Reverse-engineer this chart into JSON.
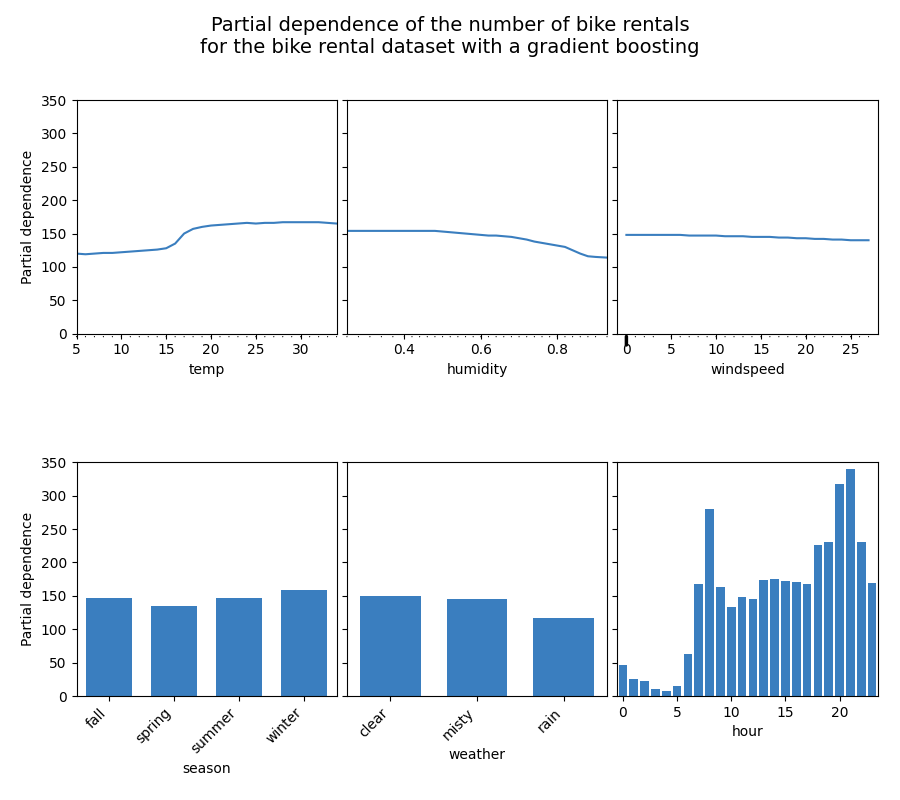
{
  "title": "Partial dependence of the number of bike rentals\nfor the bike rental dataset with a gradient boosting",
  "title_fontsize": 14,
  "line_color": "#3a7ebf",
  "bar_color": "#3a7ebf",
  "ylabel": "Partial dependence",
  "ylim": [
    0,
    350
  ],
  "yticks": [
    0,
    50,
    100,
    150,
    200,
    250,
    300,
    350
  ],
  "temp_x": [
    5.0,
    6.0,
    7.0,
    8.0,
    9.0,
    10.0,
    11.0,
    12.0,
    13.0,
    14.0,
    15.0,
    16.0,
    17.0,
    18.0,
    19.0,
    20.0,
    21.0,
    22.0,
    23.0,
    24.0,
    25.0,
    26.0,
    27.0,
    28.0,
    29.0,
    30.0,
    31.0,
    32.0,
    33.0,
    34.0
  ],
  "temp_y": [
    120,
    119,
    120,
    121,
    121,
    122,
    123,
    124,
    125,
    126,
    128,
    135,
    150,
    157,
    160,
    162,
    163,
    164,
    165,
    166,
    165,
    166,
    166,
    167,
    167,
    167,
    167,
    167,
    166,
    165
  ],
  "temp_rug": [
    5.0,
    6.0,
    7.0,
    8.0,
    9.0,
    10.0,
    11.0,
    12.0,
    13.0,
    14.0,
    15.0,
    16.0,
    17.0,
    18.0,
    19.0,
    20.0,
    21.0,
    22.0,
    23.0,
    24.0,
    25.0,
    26.0,
    27.0,
    28.0,
    29.0,
    30.0,
    31.0,
    32.0,
    33.0,
    34.0
  ],
  "humidity_x": [
    0.25,
    0.28,
    0.31,
    0.34,
    0.37,
    0.4,
    0.42,
    0.44,
    0.46,
    0.48,
    0.5,
    0.52,
    0.54,
    0.56,
    0.58,
    0.6,
    0.62,
    0.64,
    0.66,
    0.68,
    0.7,
    0.72,
    0.74,
    0.76,
    0.78,
    0.8,
    0.82,
    0.84,
    0.86,
    0.88,
    0.9,
    0.93
  ],
  "humidity_y": [
    154,
    154,
    154,
    154,
    154,
    154,
    154,
    154,
    154,
    154,
    153,
    152,
    151,
    150,
    149,
    148,
    147,
    147,
    146,
    145,
    143,
    141,
    138,
    136,
    134,
    132,
    130,
    125,
    120,
    116,
    115,
    114
  ],
  "humidity_rug": [
    0.25,
    0.28,
    0.31,
    0.34,
    0.37,
    0.4,
    0.42,
    0.44,
    0.46,
    0.48,
    0.5,
    0.52,
    0.54,
    0.56,
    0.58,
    0.6,
    0.62,
    0.64,
    0.66,
    0.68,
    0.7,
    0.72,
    0.74,
    0.76,
    0.78,
    0.8,
    0.82,
    0.84,
    0.86,
    0.88,
    0.9,
    0.93
  ],
  "windspeed_x": [
    0,
    1,
    2,
    3,
    4,
    5,
    6,
    7,
    8,
    9,
    10,
    11,
    12,
    13,
    14,
    15,
    16,
    17,
    18,
    19,
    20,
    21,
    22,
    23,
    24,
    25,
    26,
    27
  ],
  "windspeed_y": [
    148,
    148,
    148,
    148,
    148,
    148,
    148,
    147,
    147,
    147,
    147,
    146,
    146,
    146,
    145,
    145,
    145,
    144,
    144,
    143,
    143,
    142,
    142,
    141,
    141,
    140,
    140,
    140
  ],
  "windspeed_rug": [
    0,
    1,
    2,
    3,
    5,
    6,
    7,
    8,
    9,
    10,
    11,
    12,
    13,
    14,
    15,
    16,
    17,
    18,
    19,
    20,
    21,
    22,
    23,
    24,
    25,
    26,
    27
  ],
  "season_cats": [
    "fall",
    "spring",
    "summer",
    "winter"
  ],
  "season_vals": [
    147,
    135,
    147,
    158
  ],
  "weather_cats": [
    "clear",
    "misty",
    "rain"
  ],
  "weather_vals": [
    150,
    146,
    117
  ],
  "hour_vals": [
    46,
    26,
    22,
    10,
    8,
    15,
    63,
    168,
    280,
    163,
    133,
    148,
    145,
    173,
    175,
    172,
    170,
    168,
    226,
    230,
    318,
    340,
    231,
    169
  ]
}
